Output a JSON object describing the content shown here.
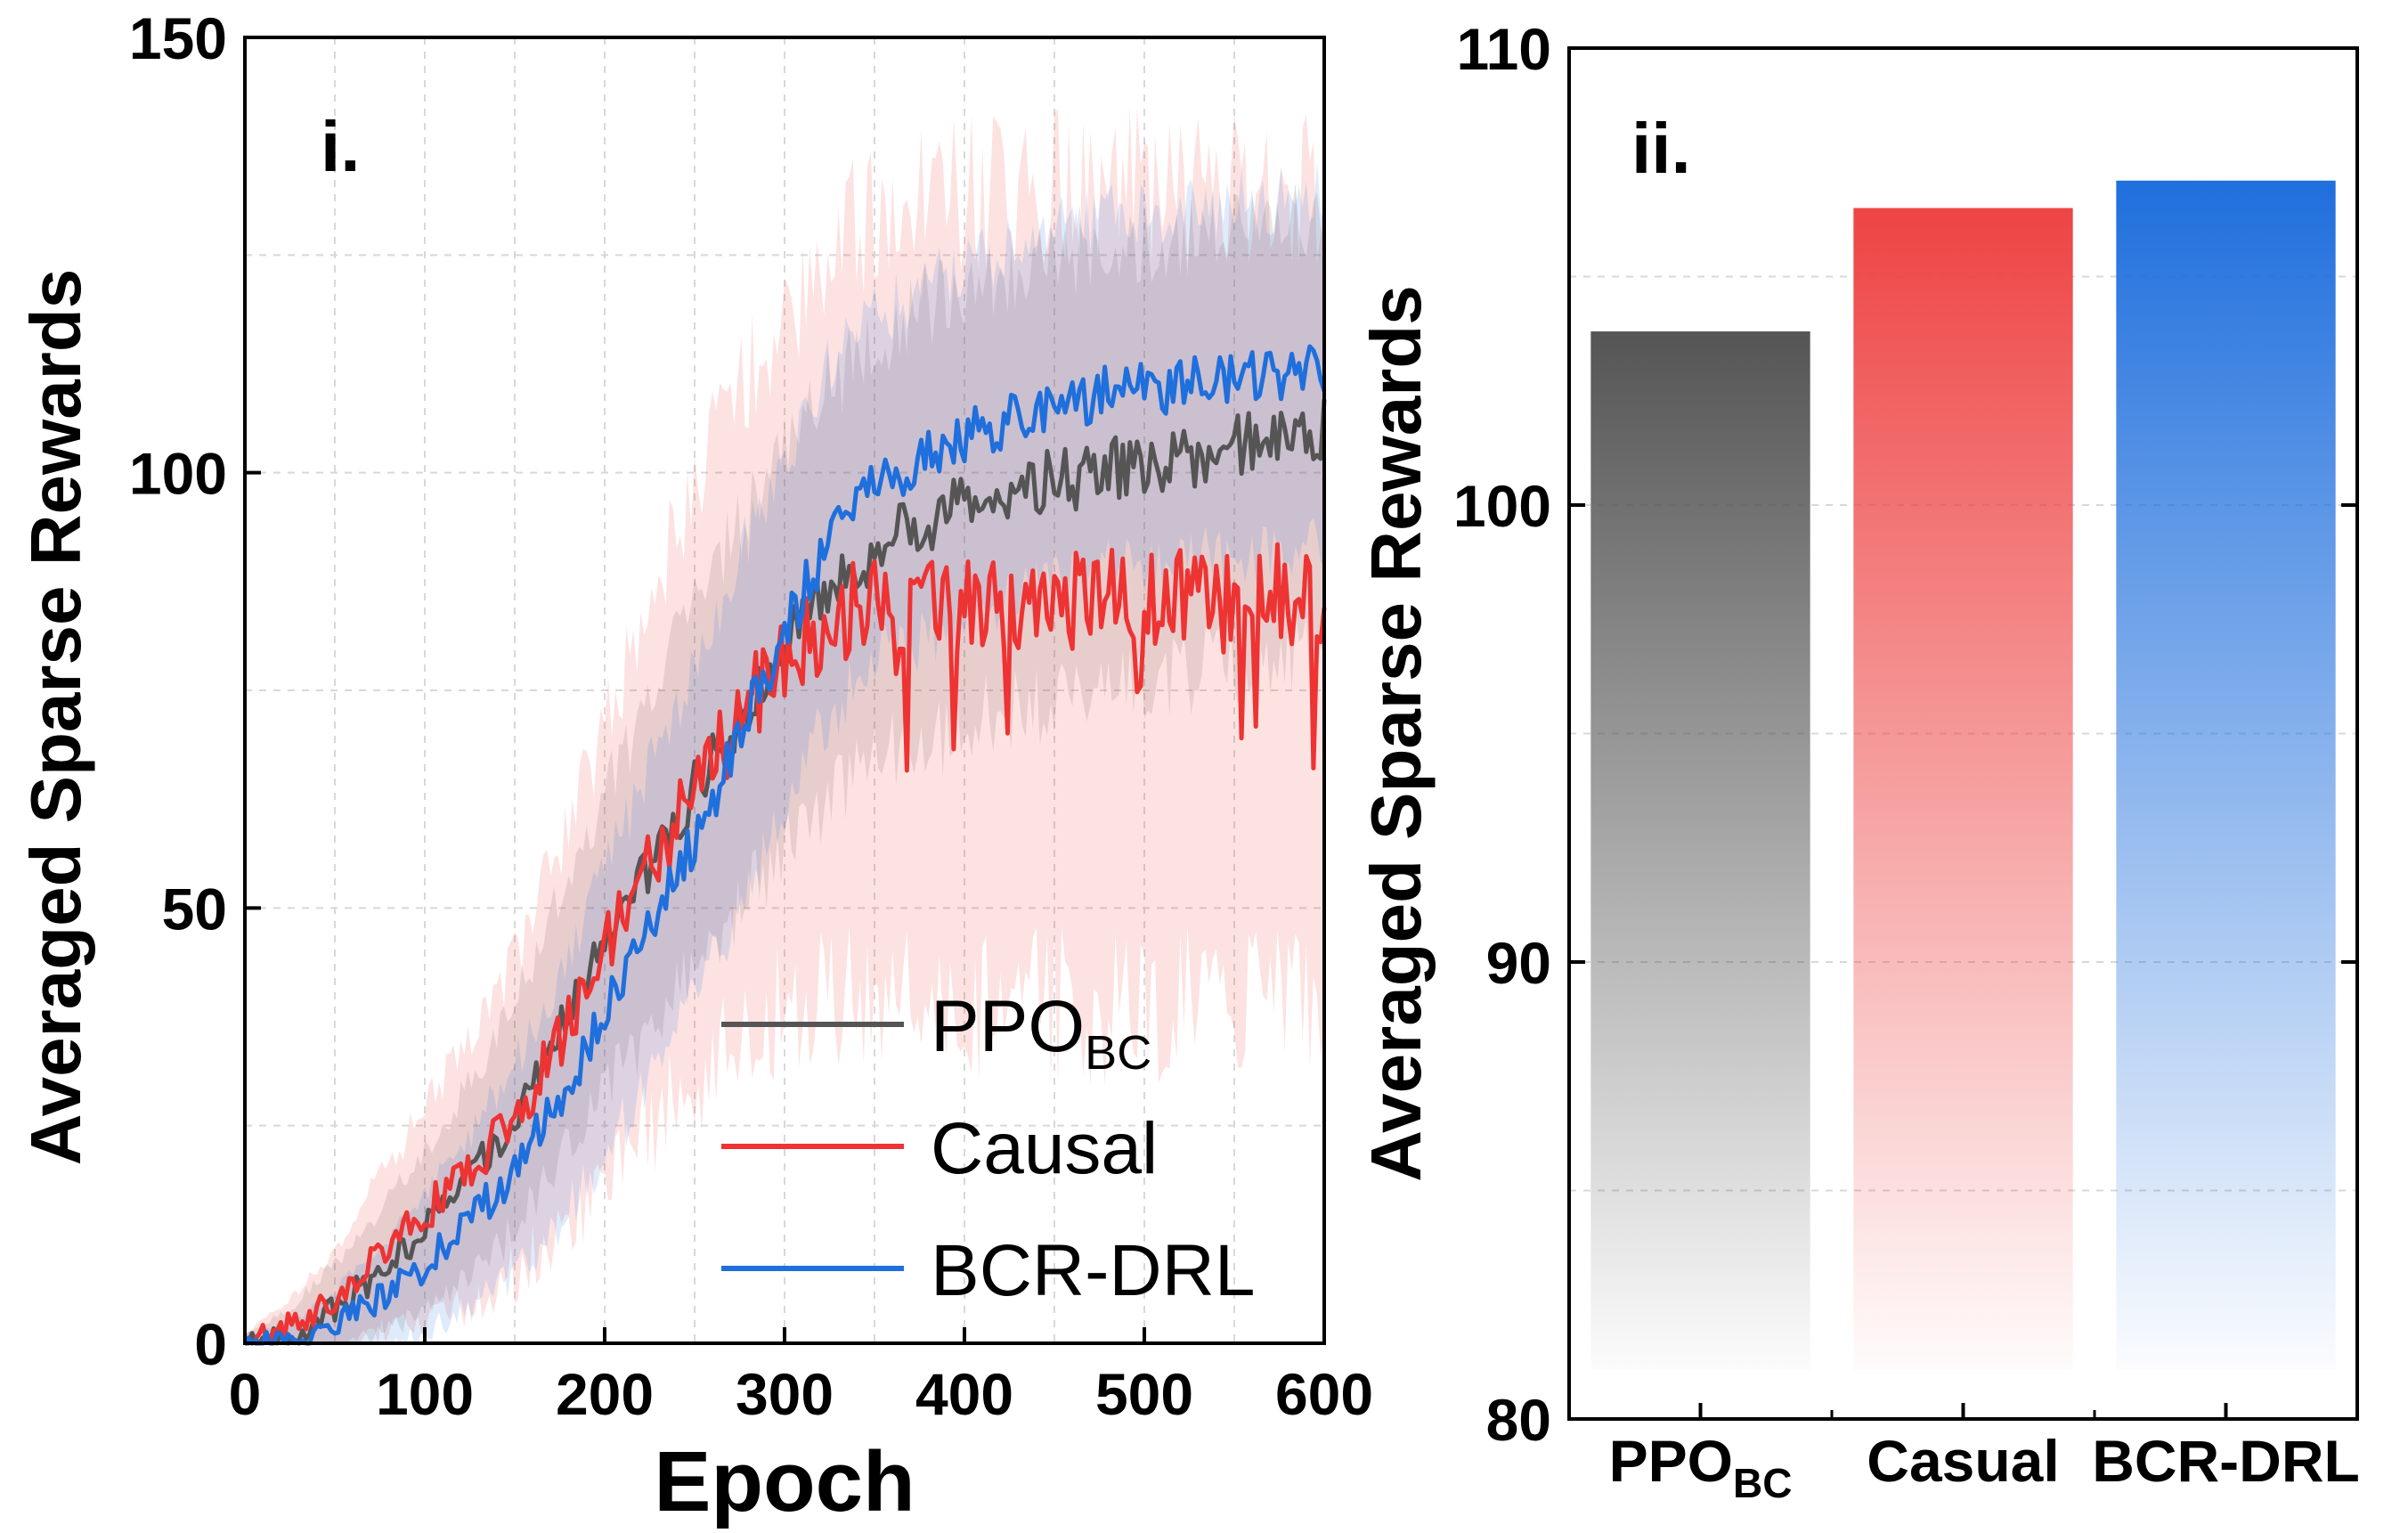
{
  "chart_data": [
    {
      "panel_label": "i.",
      "type": "line",
      "xlabel": "Epoch",
      "ylabel": "Averaged Sparse Rewards",
      "xlim": [
        0,
        600
      ],
      "ylim": [
        0,
        150
      ],
      "x_ticks": [
        "0",
        "100",
        "200",
        "300",
        "400",
        "500",
        "600"
      ],
      "y_ticks": [
        "0",
        "50",
        "100",
        "150"
      ],
      "grid": true,
      "legend_position": "bottom-right",
      "x": [
        0,
        25,
        50,
        75,
        100,
        125,
        150,
        175,
        200,
        225,
        250,
        275,
        300,
        325,
        350,
        375,
        400,
        425,
        450,
        475,
        500,
        525,
        550,
        575,
        600
      ],
      "series": [
        {
          "legend_main": "PPO",
          "legend_sub": "BC",
          "color": "#555555",
          "values": [
            0,
            1,
            4,
            8,
            13,
            19,
            26,
            36,
            46,
            55,
            64,
            72,
            80,
            86,
            91,
            94,
            96,
            98,
            99,
            100,
            101,
            102,
            103,
            104,
            105
          ],
          "band": [
            1,
            3,
            5,
            7,
            9,
            11,
            13,
            15,
            17,
            19,
            21,
            22,
            23,
            24,
            24,
            25,
            25,
            25,
            25,
            25,
            25,
            25,
            25,
            25,
            25
          ]
        },
        {
          "legend_main": "Causal",
          "legend_sub": "",
          "color": "#ee3333",
          "values": [
            0,
            2,
            5,
            10,
            15,
            20,
            26,
            35,
            45,
            55,
            64,
            72,
            79,
            83,
            85,
            85,
            85,
            85,
            86,
            85,
            86,
            86,
            85,
            86,
            86
          ],
          "band": [
            1,
            3,
            6,
            9,
            12,
            15,
            18,
            22,
            26,
            30,
            34,
            37,
            40,
            43,
            45,
            46,
            47,
            47,
            47,
            47,
            47,
            47,
            47,
            47,
            47
          ]
        },
        {
          "legend_main": "BCR-DRL",
          "legend_sub": "",
          "color": "#1f6fdd",
          "values": [
            0,
            0,
            2,
            5,
            9,
            14,
            20,
            28,
            38,
            48,
            58,
            70,
            82,
            92,
            98,
            101,
            104,
            106,
            108,
            109,
            110,
            110,
            111,
            111,
            112
          ],
          "band": [
            1,
            2,
            4,
            6,
            8,
            10,
            12,
            14,
            16,
            18,
            19,
            20,
            20,
            20,
            20,
            20,
            20,
            20,
            20,
            20,
            20,
            20,
            20,
            20,
            20
          ]
        }
      ]
    },
    {
      "panel_label": "ii.",
      "type": "bar",
      "ylabel": "Averaged Sparse Rewards",
      "ylim": [
        80,
        110
      ],
      "y_ticks": [
        "80",
        "90",
        "100",
        "110"
      ],
      "grid": true,
      "categories": [
        {
          "main": "PPO",
          "sub": "BC"
        },
        {
          "main": "Casual",
          "sub": ""
        },
        {
          "main": "BCR-DRL",
          "sub": ""
        }
      ],
      "values": [
        103.8,
        106.5,
        107.1
      ],
      "colors": [
        "#555555",
        "#ee4444",
        "#1f6fdd"
      ]
    }
  ]
}
